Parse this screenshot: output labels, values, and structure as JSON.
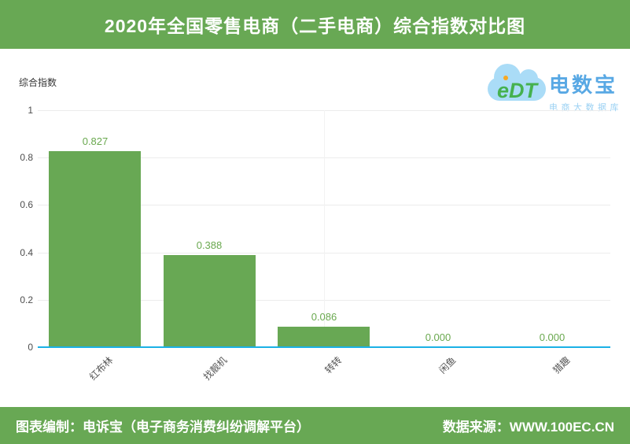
{
  "header": {
    "title": "2020年全国零售电商（二手电商）综合指数对比图"
  },
  "logo": {
    "cloud_text": "eDT",
    "name": "电数宝",
    "tagline": "电商大数据库"
  },
  "chart_data": {
    "type": "bar",
    "title": "2020年全国零售电商（二手电商）综合指数对比图",
    "ylabel": "综合指数",
    "xlabel": "",
    "categories": [
      "红布林",
      "找靓机",
      "转转",
      "闲鱼",
      "猎趣"
    ],
    "values": [
      0.827,
      0.388,
      0.086,
      0,
      0
    ],
    "value_labels": [
      "0.827",
      "0.388",
      "0.086",
      "0.000",
      "0.000"
    ],
    "ylim": [
      0,
      1
    ],
    "ytick_values": [
      0,
      0.2,
      0.4,
      0.6,
      0.8,
      1
    ],
    "ytick_labels": [
      "0",
      "0.2",
      "0.4",
      "0.6",
      "0.8",
      "1"
    ],
    "grid": true,
    "legend_position": "none",
    "bar_color": "#68a854",
    "value_label_color": "#69a84e",
    "axis_line_color": "#1bb1e6",
    "gridline_color": "#ececec"
  },
  "footer": {
    "left": "图表编制：电诉宝（电子商务消费纠纷调解平台）",
    "right": "数据来源：WWW.100EC.CN"
  },
  "colors": {
    "theme_green": "#68a854",
    "axis_blue": "#1bb1e6",
    "logo_name_blue": "#58a8e4",
    "logo_tagline_blue": "#9bd1f3",
    "cloud_blue": "#aadcf7",
    "edt_green": "#45b14f",
    "edt_dot_orange": "#f7a823",
    "tick_text": "#4d4d4d"
  }
}
